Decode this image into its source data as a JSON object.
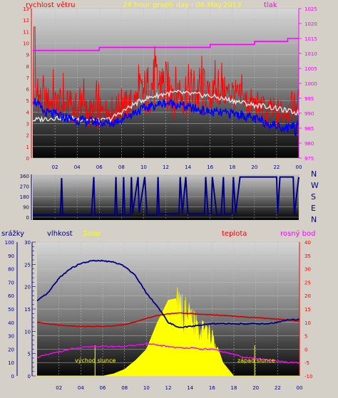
{
  "header": {
    "title": "24 hour graph day : 06.May.2013"
  },
  "colors": {
    "wind_gust": "#ff0000",
    "wind_avg": "#0000ff",
    "wind_white": "#e6e6e6",
    "pressure": "#ff00ff",
    "humidity": "#000080",
    "temperature": "#cc0000",
    "dewpoint": "#ff00ff",
    "solar": "#ffff00",
    "direction": "#000080"
  },
  "chart_data": [
    {
      "id": "wind-pressure",
      "type": "line",
      "left_label": "rychlost větru",
      "right_label": "tlak",
      "x_ticks": [
        "02",
        "04",
        "06",
        "08",
        "10",
        "12",
        "14",
        "16",
        "18",
        "20",
        "22",
        "00"
      ],
      "y_left": {
        "range": [
          0,
          13
        ],
        "ticks": [
          "0",
          "1",
          "2",
          "3",
          "4",
          "5",
          "6",
          "7",
          "8",
          "9",
          "10",
          "11",
          "12",
          "13"
        ]
      },
      "y_right": {
        "range": [
          975,
          1025
        ],
        "ticks": [
          "975",
          "980",
          "985",
          "990",
          "995",
          "1000",
          "1005",
          "1010",
          "1015",
          "1020",
          "1025"
        ]
      },
      "hours": [
        0,
        1,
        2,
        3,
        4,
        5,
        6,
        7,
        8,
        9,
        10,
        11,
        12,
        13,
        14,
        15,
        16,
        17,
        18,
        19,
        20,
        21,
        22,
        23,
        24
      ],
      "series": [
        {
          "key": "gust",
          "axis": "left",
          "values": [
            5.5,
            5.0,
            4.8,
            4.6,
            4.3,
            4.0,
            3.8,
            4.0,
            4.4,
            4.8,
            5.5,
            6.6,
            6.2,
            5.6,
            5.8,
            5.8,
            5.4,
            5.8,
            5.6,
            5.0,
            4.6,
            4.0,
            3.8,
            4.2,
            4.8
          ]
        },
        {
          "key": "avg",
          "axis": "left",
          "values": [
            5.2,
            4.0,
            3.8,
            3.5,
            3.3,
            3.2,
            3.1,
            3.0,
            3.4,
            3.9,
            4.3,
            4.6,
            4.8,
            4.7,
            4.4,
            4.2,
            4.0,
            3.9,
            3.9,
            3.7,
            3.4,
            3.1,
            2.8,
            2.6,
            3.2
          ]
        },
        {
          "key": "white",
          "axis": "left",
          "values": [
            3.3,
            3.4,
            3.5,
            3.5,
            3.4,
            3.3,
            3.2,
            3.4,
            4.0,
            4.6,
            5.1,
            5.4,
            5.6,
            5.7,
            5.6,
            5.5,
            5.4,
            5.2,
            5.0,
            4.8,
            4.6,
            4.5,
            4.3,
            4.1,
            3.9
          ]
        },
        {
          "key": "pressure",
          "axis": "right",
          "values": [
            1011,
            1011,
            1011,
            1011,
            1011,
            1011,
            1012,
            1012,
            1012,
            1012,
            1012,
            1012,
            1012,
            1012,
            1012,
            1012,
            1013,
            1013,
            1013,
            1013,
            1014,
            1014,
            1014,
            1015,
            1015
          ]
        }
      ],
      "spike": {
        "hour": 0.15,
        "value": 11.4
      },
      "dip": {
        "hour": 23.7,
        "value": 2.0
      }
    },
    {
      "id": "wind-direction",
      "type": "line",
      "y_ticks": [
        "0",
        "90",
        "180",
        "270",
        "360"
      ],
      "y_range": [
        0,
        360
      ],
      "compass": [
        "N",
        "W",
        "S",
        "E",
        "N"
      ],
      "points": [
        [
          0,
          20
        ],
        [
          2.5,
          20
        ],
        [
          2.6,
          340
        ],
        [
          2.7,
          20
        ],
        [
          5.3,
          20
        ],
        [
          5.5,
          350
        ],
        [
          5.6,
          20
        ],
        [
          7.4,
          20
        ],
        [
          7.5,
          350
        ],
        [
          7.6,
          20
        ],
        [
          8.1,
          20
        ],
        [
          8.2,
          350
        ],
        [
          8.3,
          20
        ],
        [
          8.8,
          20
        ],
        [
          8.9,
          350
        ],
        [
          9.0,
          30
        ],
        [
          9.5,
          350
        ],
        [
          9.6,
          40
        ],
        [
          10.1,
          350
        ],
        [
          10.3,
          20
        ],
        [
          11.2,
          20
        ],
        [
          11.3,
          350
        ],
        [
          11.4,
          30
        ],
        [
          13.2,
          30
        ],
        [
          13.3,
          350
        ],
        [
          13.5,
          30
        ],
        [
          13.8,
          350
        ],
        [
          14.0,
          30
        ],
        [
          15.5,
          30
        ],
        [
          15.6,
          350
        ],
        [
          15.8,
          30
        ],
        [
          16.1,
          30
        ],
        [
          16.2,
          350
        ],
        [
          16.6,
          20
        ],
        [
          17.0,
          20
        ],
        [
          17.2,
          350
        ],
        [
          17.3,
          30
        ],
        [
          18.0,
          30
        ],
        [
          18.1,
          350
        ],
        [
          18.3,
          30
        ],
        [
          18.7,
          350
        ],
        [
          22.0,
          350
        ],
        [
          22.1,
          30
        ],
        [
          22.3,
          350
        ],
        [
          23.5,
          350
        ],
        [
          23.6,
          20
        ],
        [
          24,
          350
        ]
      ]
    },
    {
      "id": "humidity-temp",
      "type": "line",
      "labels": {
        "rain": "srážky",
        "humidity": "vlhkost",
        "solar": "Solar",
        "temperature": "teplota",
        "dewpoint": "rosný bod"
      },
      "x_ticks": [
        "02",
        "04",
        "06",
        "08",
        "10",
        "12",
        "14",
        "16",
        "18",
        "20",
        "22",
        "00"
      ],
      "y_rain": {
        "range": [
          0,
          100
        ],
        "ticks": [
          "0",
          "10",
          "20",
          "30",
          "40",
          "50",
          "60",
          "70",
          "80",
          "90",
          "100"
        ]
      },
      "y_humidity": {
        "range": [
          0,
          30
        ],
        "ticks": [
          "0",
          "5",
          "10",
          "15",
          "20",
          "25",
          "30"
        ]
      },
      "y_right": {
        "range": [
          -10,
          40
        ],
        "ticks": [
          "-10",
          "-5",
          "0",
          "5",
          "10",
          "15",
          "20",
          "25",
          "30",
          "35",
          "40"
        ]
      },
      "annotations": {
        "sunrise": "východ slunce",
        "sunset": "západ slunce"
      },
      "hours": [
        0,
        1,
        2,
        3,
        4,
        5,
        6,
        7,
        8,
        9,
        10,
        11,
        12,
        13,
        14,
        15,
        16,
        17,
        18,
        19,
        20,
        21,
        22,
        23,
        24
      ],
      "series": [
        {
          "key": "humidity",
          "axis": "rain",
          "values": [
            56,
            62,
            73,
            80,
            84,
            86,
            86,
            85,
            82,
            75,
            62,
            52,
            40,
            36,
            37,
            38,
            39,
            39,
            39,
            39,
            39,
            39,
            40,
            42,
            42
          ]
        },
        {
          "key": "temperature",
          "axis": "right",
          "values": [
            10,
            9.5,
            9,
            8.7,
            8.5,
            8.5,
            8.5,
            8.7,
            9.2,
            10.2,
            11.5,
            12.5,
            13.2,
            13.5,
            13.3,
            13.0,
            12.8,
            12.6,
            12.3,
            12.0,
            11.8,
            11.5,
            11.2,
            10.8,
            10.4
          ]
        },
        {
          "key": "dewpoint",
          "axis": "right",
          "values": [
            -3,
            -2,
            -1,
            0,
            0.5,
            1,
            1,
            1,
            1,
            1.5,
            2,
            1.5,
            1,
            0.5,
            0.5,
            0,
            0,
            -1,
            -2,
            -3,
            -3.5,
            -4,
            -4.5,
            -5,
            -5
          ]
        },
        {
          "key": "solar",
          "axis": "humidity",
          "values": [
            0,
            0,
            0,
            0,
            0,
            0,
            0,
            0.5,
            1.5,
            3.5,
            6,
            12,
            17,
            17.5,
            14,
            12,
            10,
            3,
            0,
            0,
            0,
            0,
            0,
            0,
            0
          ]
        }
      ],
      "sunrise_hour": 5.3,
      "sunset_hour": 19.9
    }
  ]
}
